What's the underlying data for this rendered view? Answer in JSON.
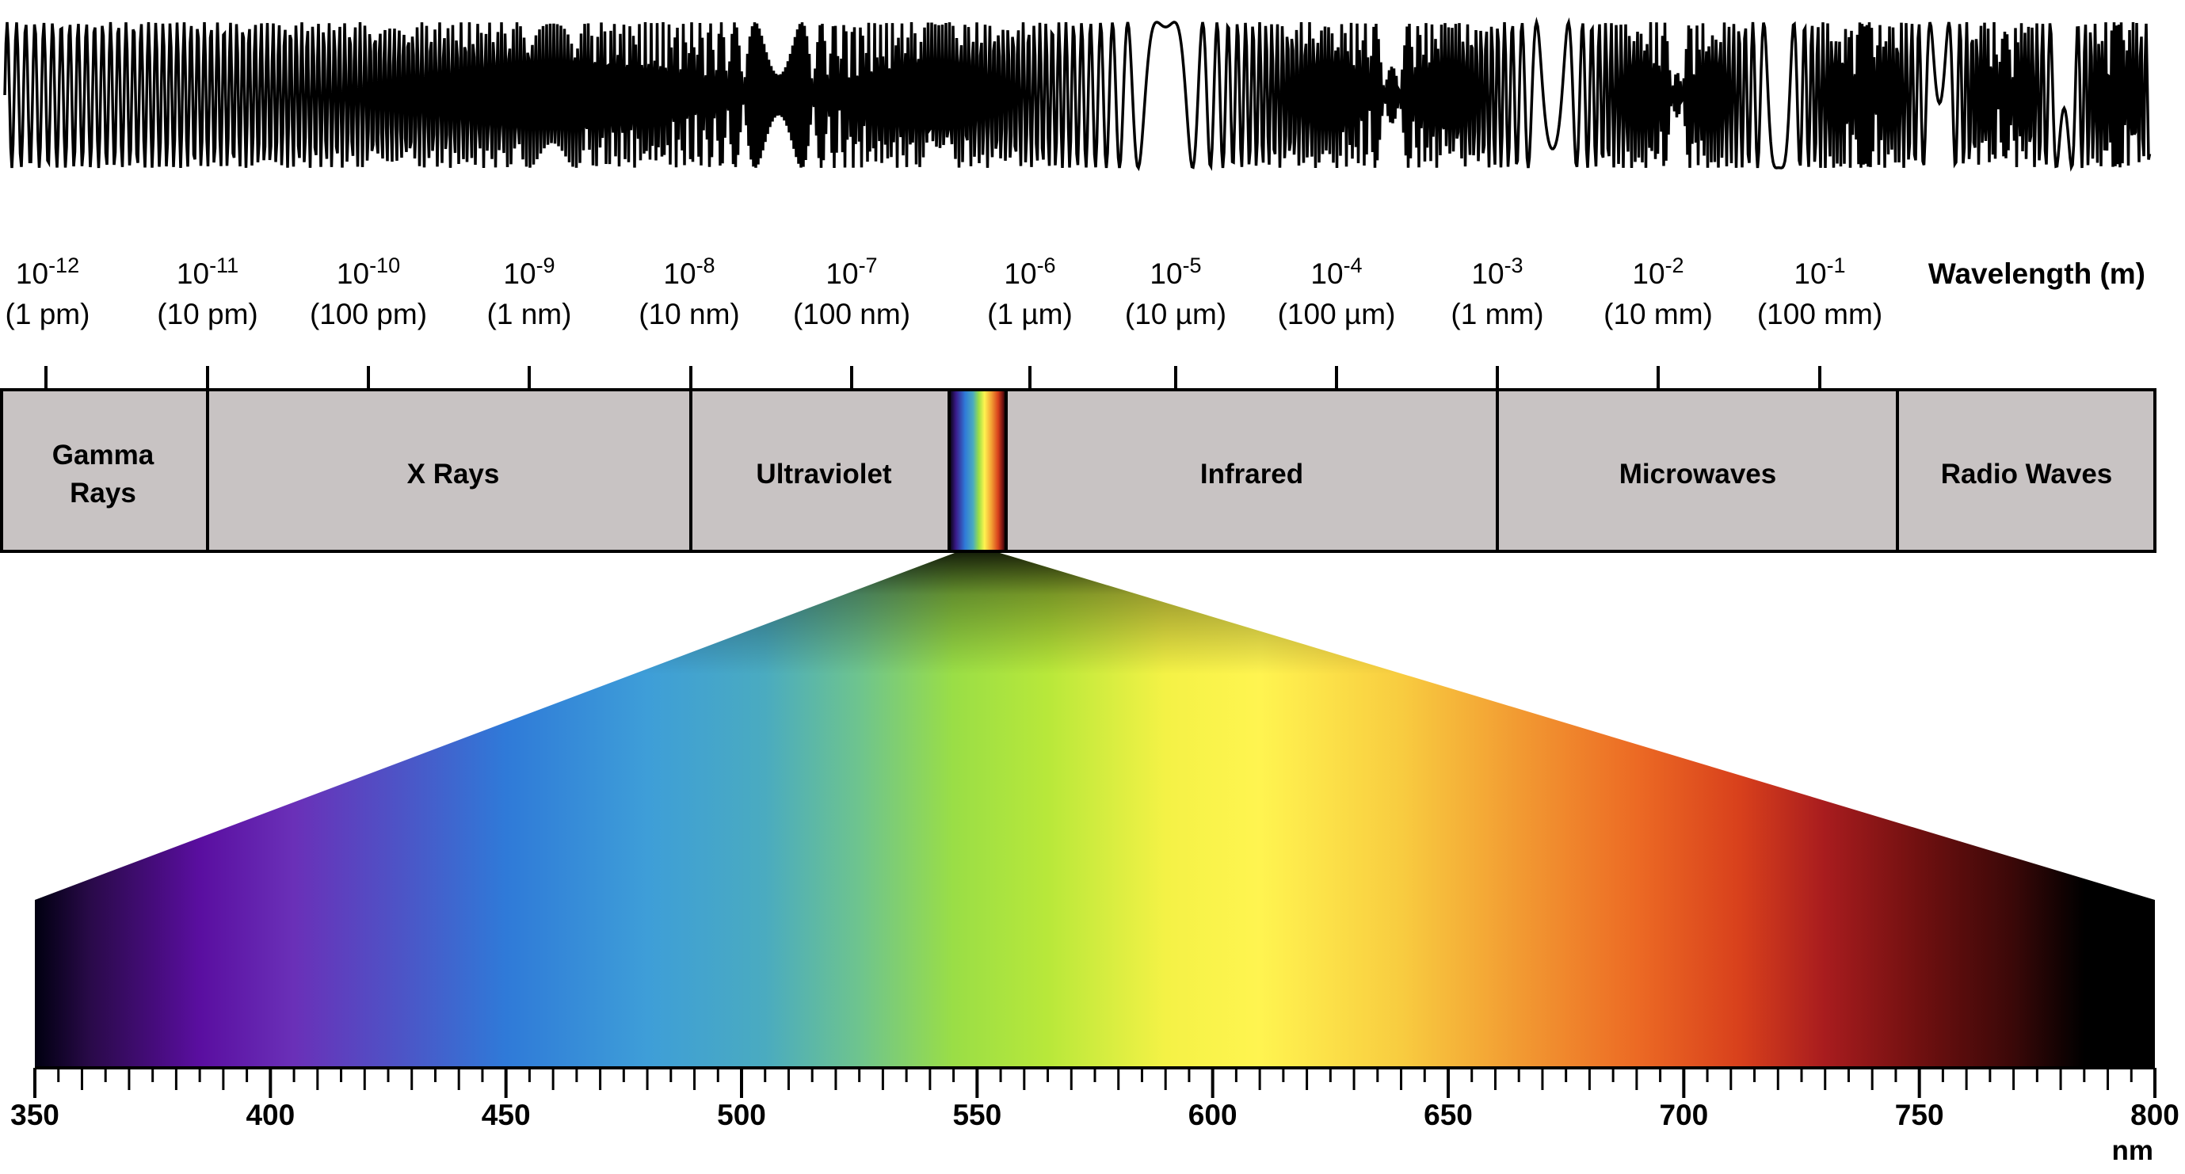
{
  "colors": {
    "band_fill": "#c8c3c3",
    "stroke": "#000000",
    "background": "#ffffff"
  },
  "wavelength_axis": {
    "title": "Wavelength (m)",
    "ticks": [
      {
        "base": "10",
        "exp": "-12",
        "label": "(1 pm)"
      },
      {
        "base": "10",
        "exp": "-11",
        "label": "(10 pm)"
      },
      {
        "base": "10",
        "exp": "-10",
        "label": "(100 pm)"
      },
      {
        "base": "10",
        "exp": "-9",
        "label": "(1 nm)"
      },
      {
        "base": "10",
        "exp": "-8",
        "label": "(10 nm)"
      },
      {
        "base": "10",
        "exp": "-7",
        "label": "(100 nm)"
      },
      {
        "base": "10",
        "exp": "-6",
        "label": "(1 µm)"
      },
      {
        "base": "10",
        "exp": "-5",
        "label": "(10 µm)"
      },
      {
        "base": "10",
        "exp": "-4",
        "label": "(100 µm)"
      },
      {
        "base": "10",
        "exp": "-3",
        "label": "(1 mm)"
      },
      {
        "base": "10",
        "exp": "-2",
        "label": "(10 mm)"
      },
      {
        "base": "10",
        "exp": "-1",
        "label": "(100 mm)"
      }
    ]
  },
  "bands": [
    {
      "line1": "Gamma",
      "line2": "Rays"
    },
    {
      "line1": "X Rays",
      "line2": ""
    },
    {
      "line1": "Ultraviolet",
      "line2": ""
    },
    {
      "line1": "",
      "line2": ""
    },
    {
      "line1": "Infrared",
      "line2": ""
    },
    {
      "line1": "Microwaves",
      "line2": ""
    },
    {
      "line1": "Radio Waves",
      "line2": ""
    }
  ],
  "visible_spectrum": {
    "unit": "nm",
    "min": 350,
    "max": 800,
    "major_step": 50,
    "minor_step": 5,
    "labels": [
      "350",
      "400",
      "450",
      "500",
      "550",
      "600",
      "650",
      "700",
      "750",
      "800"
    ],
    "color_stops": [
      {
        "nm": 350,
        "color": "#000010"
      },
      {
        "nm": 362,
        "color": "#2a0a4a"
      },
      {
        "nm": 385,
        "color": "#5a0ea0"
      },
      {
        "nm": 405,
        "color": "#6a30b8"
      },
      {
        "nm": 430,
        "color": "#4a58c8"
      },
      {
        "nm": 450,
        "color": "#2f7ad8"
      },
      {
        "nm": 480,
        "color": "#3e9ed8"
      },
      {
        "nm": 505,
        "color": "#4aabc0"
      },
      {
        "nm": 525,
        "color": "#6ec48e"
      },
      {
        "nm": 545,
        "color": "#9ade46"
      },
      {
        "nm": 565,
        "color": "#b8e83a"
      },
      {
        "nm": 590,
        "color": "#f4f246"
      },
      {
        "nm": 610,
        "color": "#fff450"
      },
      {
        "nm": 640,
        "color": "#f8cc40"
      },
      {
        "nm": 665,
        "color": "#f29a32"
      },
      {
        "nm": 690,
        "color": "#ec6a24"
      },
      {
        "nm": 712,
        "color": "#d8401c"
      },
      {
        "nm": 730,
        "color": "#a81c1e"
      },
      {
        "nm": 750,
        "color": "#701010"
      },
      {
        "nm": 770,
        "color": "#3a0808"
      },
      {
        "nm": 785,
        "color": "#000000"
      },
      {
        "nm": 800,
        "color": "#000000"
      }
    ]
  }
}
